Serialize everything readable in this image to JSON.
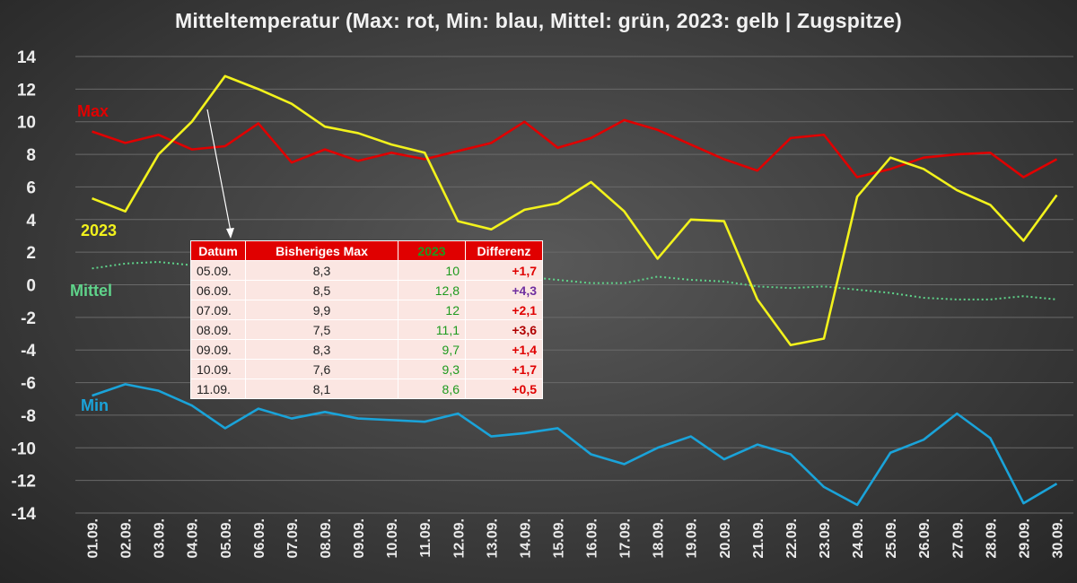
{
  "title": "Mitteltemperatur (Max: rot, Min: blau, Mittel: grün, 2023: gelb | Zugspitze)",
  "colors": {
    "max": "#e00000",
    "min": "#1aa3d9",
    "mittel": "#5fd38a",
    "y2023": "#f2f21c",
    "grid": "#6a6a6a",
    "table_header": "#e00000",
    "table_cell": "#fbe6e2"
  },
  "chart_data": {
    "type": "line",
    "ylim": [
      -14,
      14
    ],
    "yticks": [
      14,
      12,
      10,
      8,
      6,
      4,
      2,
      0,
      -2,
      -4,
      -6,
      -8,
      -10,
      -12,
      -14
    ],
    "x": [
      "01.09.",
      "02.09.",
      "03.09.",
      "04.09.",
      "05.09.",
      "06.09.",
      "07.09.",
      "08.09.",
      "09.09.",
      "10.09.",
      "11.09.",
      "12.09.",
      "13.09.",
      "14.09.",
      "15.09.",
      "16.09.",
      "17.09.",
      "18.09.",
      "19.09.",
      "20.09.",
      "21.09.",
      "22.09.",
      "23.09.",
      "24.09.",
      "25.09.",
      "26.09.",
      "27.09.",
      "28.09.",
      "29.09.",
      "30.09."
    ],
    "series": [
      {
        "name": "Max",
        "color": "#e00000",
        "style": "solid",
        "values": [
          9.4,
          8.7,
          9.2,
          8.3,
          8.5,
          9.9,
          7.5,
          8.3,
          7.6,
          8.1,
          7.7,
          8.2,
          8.7,
          10.0,
          8.4,
          9.0,
          10.1,
          9.5,
          8.6,
          7.7,
          7.0,
          9.0,
          9.2,
          6.6,
          7.1,
          7.8,
          8.0,
          8.1,
          6.6,
          7.7
        ]
      },
      {
        "name": "Min",
        "color": "#1aa3d9",
        "style": "solid",
        "values": [
          -6.8,
          -6.1,
          -6.5,
          -7.4,
          -8.8,
          -7.6,
          -8.2,
          -7.8,
          -8.2,
          -8.3,
          -8.4,
          -7.9,
          -9.3,
          -9.1,
          -8.8,
          -10.4,
          -11.0,
          -10.0,
          -9.3,
          -10.7,
          -9.8,
          -10.4,
          -12.4,
          -13.5,
          -10.3,
          -9.5,
          -7.9,
          -9.4,
          -13.4,
          -12.2
        ]
      },
      {
        "name": "Mittel",
        "color": "#5fd38a",
        "style": "dotted",
        "values": [
          1.0,
          1.3,
          1.4,
          1.2,
          0.9,
          0.9,
          0.8,
          0.9,
          0.8,
          0.7,
          0.6,
          0.6,
          0.5,
          0.5,
          0.3,
          0.1,
          0.1,
          0.5,
          0.3,
          0.2,
          -0.1,
          -0.2,
          -0.1,
          -0.3,
          -0.5,
          -0.8,
          -0.9,
          -0.9,
          -0.7,
          -0.9
        ]
      },
      {
        "name": "2023",
        "color": "#f2f21c",
        "style": "solid",
        "values": [
          5.3,
          4.5,
          8.0,
          10.0,
          12.8,
          12.0,
          11.1,
          9.7,
          9.3,
          8.6,
          8.1,
          3.9,
          3.4,
          4.6,
          5.0,
          6.3,
          4.5,
          1.6,
          4.0,
          3.9,
          -0.9,
          -3.7,
          -3.3,
          5.4,
          7.8,
          7.1,
          5.8,
          4.9,
          2.7,
          5.5
        ]
      }
    ],
    "labels": {
      "max": "Max",
      "y2023": "2023",
      "mittel": "Mittel",
      "min": "Min"
    }
  },
  "table": {
    "headers": [
      "Datum",
      "Bisheriges Max",
      "2023",
      "Differenz"
    ],
    "rows": [
      {
        "datum": "05.09.",
        "max": "8,3",
        "y2023": "10",
        "diff": "+1,7",
        "diff_color": "#e00000"
      },
      {
        "datum": "06.09.",
        "max": "8,5",
        "y2023": "12,8",
        "diff": "+4,3",
        "diff_color": "#7030a0"
      },
      {
        "datum": "07.09.",
        "max": "9,9",
        "y2023": "12",
        "diff": "+2,1",
        "diff_color": "#e00000"
      },
      {
        "datum": "08.09.",
        "max": "7,5",
        "y2023": "11,1",
        "diff": "+3,6",
        "diff_color": "#b00000"
      },
      {
        "datum": "09.09.",
        "max": "8,3",
        "y2023": "9,7",
        "diff": "+1,4",
        "diff_color": "#e00000"
      },
      {
        "datum": "10.09.",
        "max": "7,6",
        "y2023": "9,3",
        "diff": "+1,7",
        "diff_color": "#e00000"
      },
      {
        "datum": "11.09.",
        "max": "8,1",
        "y2023": "8,6",
        "diff": "+0,5",
        "diff_color": "#e00000"
      }
    ]
  }
}
